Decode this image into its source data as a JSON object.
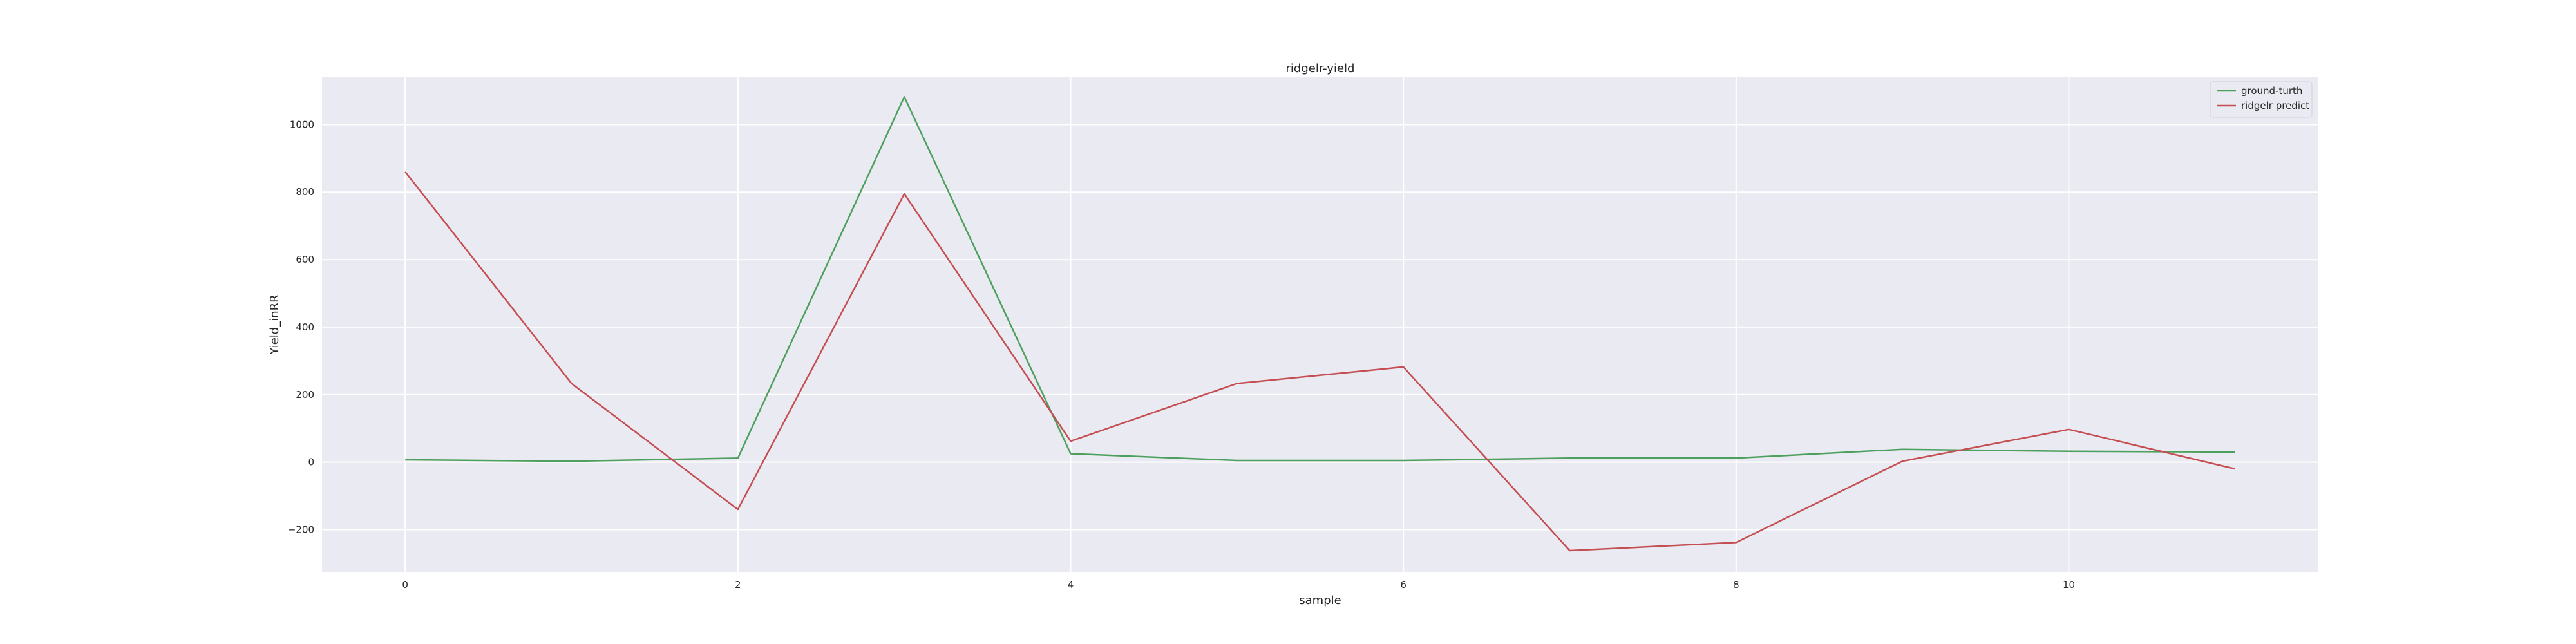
{
  "chart_data": {
    "type": "line",
    "title": "ridgelr-yield",
    "xlabel": "sample",
    "ylabel": "Yield_inRR",
    "xlim": [
      -0.5,
      11.5
    ],
    "ylim": [
      -325,
      1140
    ],
    "x_ticks": [
      0,
      2,
      4,
      6,
      8,
      10
    ],
    "y_ticks": [
      -200,
      0,
      200,
      400,
      600,
      800,
      1000
    ],
    "x_tick_labels": [
      "0",
      "2",
      "4",
      "6",
      "8",
      "10"
    ],
    "y_tick_labels": [
      "−200",
      "0",
      "200",
      "400",
      "600",
      "800",
      "1000"
    ],
    "grid": true,
    "legend_position": "top-right",
    "x": [
      0,
      1,
      2,
      3,
      4,
      5,
      6,
      7,
      8,
      9,
      10,
      11
    ],
    "series": [
      {
        "name": "ground-turth",
        "color": "#4c9f5c",
        "values": [
          7,
          3,
          12,
          1082,
          25,
          5,
          5,
          12,
          12,
          38,
          32,
          30
        ]
      },
      {
        "name": "ridgelr predict",
        "color": "#c44e52",
        "values": [
          860,
          233,
          -140,
          795,
          62,
          233,
          282,
          -262,
          -238,
          3,
          97,
          -20
        ]
      }
    ]
  }
}
